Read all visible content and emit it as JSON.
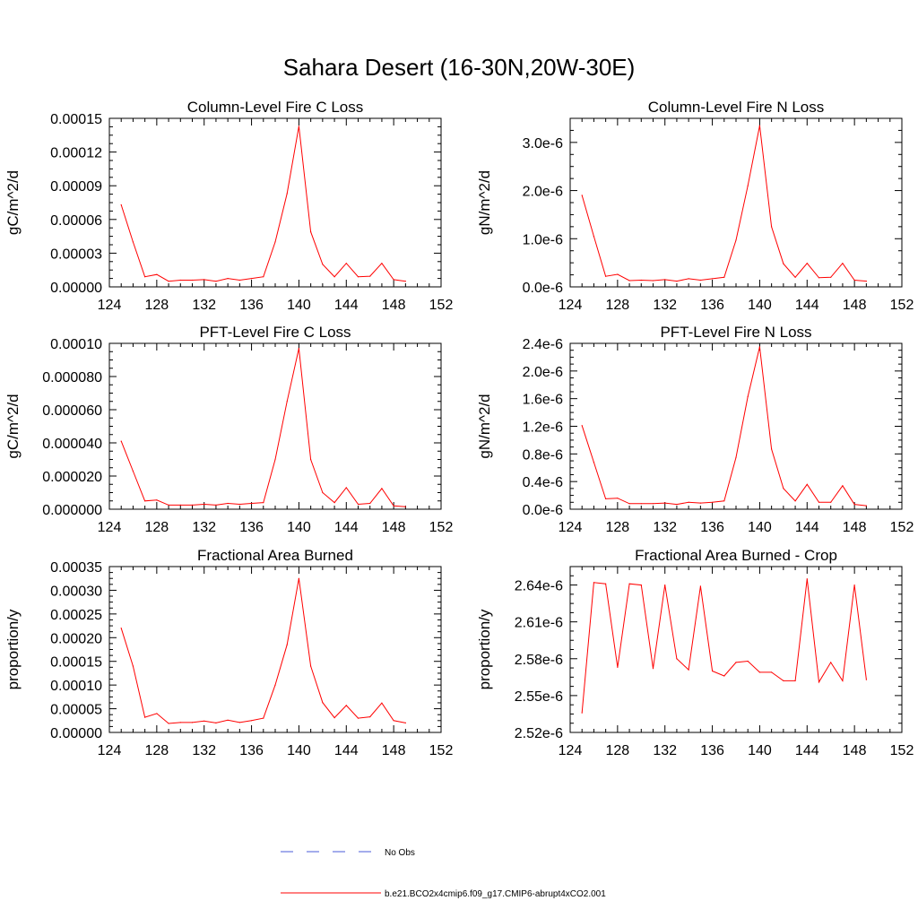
{
  "title": "Sahara Desert (16-30N,20W-30E)",
  "legend": [
    {
      "label": "No Obs",
      "color": "#4a5bd8",
      "style": "dashed"
    },
    {
      "label": "b.e21.BCO2x4cmip6.f09_g17.CMIP6-abrupt4xCO2.001",
      "color": "#ff0000",
      "style": "solid"
    }
  ],
  "chart_data": [
    {
      "type": "line",
      "title": "Column-Level Fire C Loss",
      "ylabel": "gC/m^2/d",
      "xlim": [
        124,
        152
      ],
      "ylim": [
        0,
        0.00015
      ],
      "xticks": [
        124,
        128,
        132,
        136,
        140,
        144,
        148,
        152
      ],
      "yticks": [
        0,
        3e-05,
        6e-05,
        9e-05,
        0.00012,
        0.00015
      ],
      "ytick_labels": [
        "0.00000",
        "0.00003",
        "0.00006",
        "0.00009",
        "0.00012",
        "0.00015"
      ],
      "series": [
        {
          "color": "#ff0000",
          "x": [
            125,
            126,
            127,
            128,
            129,
            130,
            131,
            132,
            133,
            134,
            135,
            136,
            137,
            138,
            139,
            140,
            141,
            142,
            143,
            144,
            145,
            146,
            147,
            148,
            149
          ],
          "y": [
            7.3e-05,
            4e-05,
            9e-06,
            1.1e-05,
            5e-06,
            6e-06,
            6e-06,
            6.5e-06,
            5e-06,
            7.5e-06,
            6e-06,
            7.5e-06,
            9e-06,
            4e-05,
            8.3e-05,
            0.000143,
            4.9e-05,
            2e-05,
            9e-06,
            2.1e-05,
            9e-06,
            9.5e-06,
            2.1e-05,
            6.5e-06,
            5e-06
          ]
        }
      ]
    },
    {
      "type": "line",
      "title": "Column-Level Fire N Loss",
      "ylabel": "gN/m^2/d",
      "xlim": [
        124,
        152
      ],
      "ylim": [
        0,
        3.5e-06
      ],
      "xticks": [
        124,
        128,
        132,
        136,
        140,
        144,
        148,
        152
      ],
      "yticks": [
        0,
        1e-06,
        2e-06,
        3e-06
      ],
      "ytick_labels": [
        "0.0e-6",
        "1.0e-6",
        "2.0e-6",
        "3.0e-6"
      ],
      "series": [
        {
          "color": "#ff0000",
          "x": [
            125,
            126,
            127,
            128,
            129,
            130,
            131,
            132,
            133,
            134,
            135,
            136,
            137,
            138,
            139,
            140,
            141,
            142,
            143,
            144,
            145,
            146,
            147,
            148,
            149
          ],
          "y": [
            1.9e-06,
            1.05e-06,
            2.2e-07,
            2.6e-07,
            1.3e-07,
            1.4e-07,
            1.3e-07,
            1.5e-07,
            1.2e-07,
            1.7e-07,
            1.4e-07,
            1.7e-07,
            2e-07,
            9.7e-07,
            2.1e-06,
            3.35e-06,
            1.25e-06,
            4.8e-07,
            2e-07,
            4.9e-07,
            1.9e-07,
            2e-07,
            4.9e-07,
            1.4e-07,
            1.2e-07
          ]
        }
      ]
    },
    {
      "type": "line",
      "title": "PFT-Level Fire C Loss",
      "ylabel": "gC/m^2/d",
      "xlim": [
        124,
        152
      ],
      "ylim": [
        0,
        0.0001
      ],
      "xticks": [
        124,
        128,
        132,
        136,
        140,
        144,
        148,
        152
      ],
      "yticks": [
        0,
        2e-05,
        4e-05,
        6e-05,
        8e-05,
        0.0001
      ],
      "ytick_labels": [
        "0.000000",
        "0.000020",
        "0.000040",
        "0.000060",
        "0.000080",
        "0.00010"
      ],
      "series": [
        {
          "color": "#ff0000",
          "x": [
            125,
            126,
            127,
            128,
            129,
            130,
            131,
            132,
            133,
            134,
            135,
            136,
            137,
            138,
            139,
            140,
            141,
            142,
            143,
            144,
            145,
            146,
            147,
            148,
            149
          ],
          "y": [
            4.1e-05,
            2.3e-05,
            5e-06,
            5.5e-06,
            2.5e-06,
            2.5e-06,
            2.5e-06,
            3e-06,
            2.5e-06,
            3.5e-06,
            3e-06,
            3.5e-06,
            4e-06,
            3e-05,
            6.5e-05,
            9.7e-05,
            3e-05,
            1e-05,
            4e-06,
            1.3e-05,
            3e-06,
            3.5e-06,
            1.25e-05,
            2e-06,
            1.5e-06
          ]
        }
      ]
    },
    {
      "type": "line",
      "title": "PFT-Level Fire N Loss",
      "ylabel": "gN/m^2/d",
      "xlim": [
        124,
        152
      ],
      "ylim": [
        0,
        2.4e-06
      ],
      "xticks": [
        124,
        128,
        132,
        136,
        140,
        144,
        148,
        152
      ],
      "yticks": [
        0,
        4e-07,
        8e-07,
        1.2e-06,
        1.6e-06,
        2e-06,
        2.4e-06
      ],
      "ytick_labels": [
        "0.0e-6",
        "0.4e-6",
        "0.8e-6",
        "1.2e-6",
        "1.6e-6",
        "2.0e-6",
        "2.4e-6"
      ],
      "series": [
        {
          "color": "#ff0000",
          "x": [
            125,
            126,
            127,
            128,
            129,
            130,
            131,
            132,
            133,
            134,
            135,
            136,
            137,
            138,
            139,
            140,
            141,
            142,
            143,
            144,
            145,
            146,
            147,
            148,
            149
          ],
          "y": [
            1.21e-06,
            6.8e-07,
            1.5e-07,
            1.6e-07,
            8e-08,
            8e-08,
            8e-08,
            9e-08,
            7e-08,
            1e-07,
            9e-08,
            1e-07,
            1.2e-07,
            7.5e-07,
            1.63e-06,
            2.35e-06,
            8.7e-07,
            3e-07,
            1.2e-07,
            3.6e-07,
            1e-07,
            1e-07,
            3.4e-07,
            7e-08,
            5e-08
          ]
        }
      ]
    },
    {
      "type": "line",
      "title": "Fractional Area Burned",
      "ylabel": "proportion/y",
      "xlim": [
        124,
        152
      ],
      "ylim": [
        0,
        0.00035
      ],
      "xticks": [
        124,
        128,
        132,
        136,
        140,
        144,
        148,
        152
      ],
      "yticks": [
        0,
        5e-05,
        0.0001,
        0.00015,
        0.0002,
        0.00025,
        0.0003,
        0.00035
      ],
      "ytick_labels": [
        "0.00000",
        "0.00005",
        "0.00010",
        "0.00015",
        "0.00020",
        "0.00025",
        "0.00030",
        "0.00035"
      ],
      "series": [
        {
          "color": "#ff0000",
          "x": [
            125,
            126,
            127,
            128,
            129,
            130,
            131,
            132,
            133,
            134,
            135,
            136,
            137,
            138,
            139,
            140,
            141,
            142,
            143,
            144,
            145,
            146,
            147,
            148,
            149
          ],
          "y": [
            0.00022,
            0.00014,
            3.2e-05,
            4e-05,
            1.9e-05,
            2.1e-05,
            2.1e-05,
            2.4e-05,
            2e-05,
            2.6e-05,
            2.1e-05,
            2.5e-05,
            3e-05,
            0.0001,
            0.000185,
            0.000325,
            0.00014,
            6.3e-05,
            3.1e-05,
            5.7e-05,
            3e-05,
            3.3e-05,
            6.2e-05,
            2.5e-05,
            2e-05
          ]
        }
      ]
    },
    {
      "type": "line",
      "title": "Fractional Area Burned - Crop",
      "ylabel": "proportion/y",
      "xlim": [
        124,
        152
      ],
      "ylim": [
        2.52e-06,
        2.655e-06
      ],
      "xticks": [
        124,
        128,
        132,
        136,
        140,
        144,
        148,
        152
      ],
      "yticks": [
        2.52e-06,
        2.55e-06,
        2.58e-06,
        2.61e-06,
        2.64e-06
      ],
      "ytick_labels": [
        "2.52e-6",
        "2.55e-6",
        "2.58e-6",
        "2.61e-6",
        "2.64e-6"
      ],
      "series": [
        {
          "color": "#ff0000",
          "x": [
            125,
            126,
            127,
            128,
            129,
            130,
            131,
            132,
            133,
            134,
            135,
            136,
            137,
            138,
            139,
            140,
            141,
            142,
            143,
            144,
            145,
            146,
            147,
            148,
            149
          ],
          "y": [
            2.536e-06,
            2.642e-06,
            2.641e-06,
            2.573e-06,
            2.641e-06,
            2.64e-06,
            2.572e-06,
            2.64e-06,
            2.58e-06,
            2.571e-06,
            2.639e-06,
            2.57e-06,
            2.566e-06,
            2.577e-06,
            2.578e-06,
            2.569e-06,
            2.569e-06,
            2.562e-06,
            2.562e-06,
            2.645e-06,
            2.561e-06,
            2.577e-06,
            2.562e-06,
            2.64e-06,
            2.563e-06
          ]
        }
      ]
    }
  ]
}
